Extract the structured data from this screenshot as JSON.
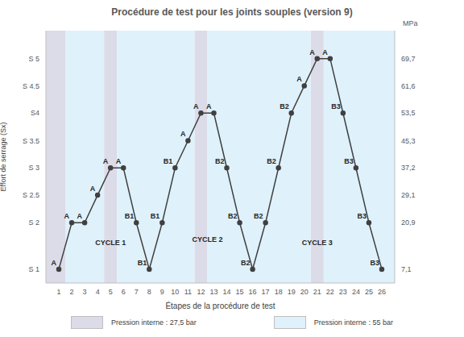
{
  "chart_data": {
    "type": "line",
    "title": "Procédure de test pour les joints souples (version 9)",
    "x_label": "Étapes de la procédure de test",
    "y_label": "Effort de serrage (Sx)",
    "y2_label": "MPa",
    "x": [
      1,
      2,
      3,
      4,
      5,
      6,
      7,
      8,
      9,
      10,
      11,
      12,
      13,
      14,
      15,
      16,
      17,
      18,
      19,
      20,
      21,
      22,
      23,
      24,
      25,
      26
    ],
    "values": [
      7.1,
      20.9,
      20.9,
      29.1,
      37.2,
      37.2,
      20.9,
      7.1,
      20.9,
      37.2,
      45.3,
      53.5,
      53.5,
      37.2,
      20.9,
      7.1,
      20.9,
      37.2,
      53.5,
      61.6,
      69.7,
      69.7,
      53.5,
      37.2,
      20.9,
      7.1
    ],
    "point_labels": [
      "A",
      "A",
      "A",
      "A",
      "A",
      "A",
      "B1",
      "B1",
      "B1",
      "B1",
      "A",
      "A",
      "A",
      "B2",
      "B2",
      "B2",
      "B2",
      "B2",
      "B2",
      "A",
      "A",
      "A",
      "B3",
      "B3",
      "B3",
      "B3"
    ],
    "color": "#404040",
    "marker": "circle",
    "xlim": [
      0,
      27
    ],
    "xticks": [
      1,
      2,
      3,
      4,
      5,
      6,
      7,
      8,
      9,
      10,
      11,
      12,
      13,
      14,
      15,
      16,
      17,
      18,
      19,
      20,
      21,
      22,
      23,
      24,
      25,
      26
    ],
    "ylim": [
      3,
      78
    ],
    "yticks": [
      {
        "value": 7.1,
        "label": "S 1"
      },
      {
        "value": 20.9,
        "label": "S 2"
      },
      {
        "value": 29.1,
        "label": "S 2.5"
      },
      {
        "value": 37.2,
        "label": "S 3"
      },
      {
        "value": 45.3,
        "label": "S 3.5"
      },
      {
        "value": 53.5,
        "label": "S4"
      },
      {
        "value": 61.6,
        "label": "S 4.5"
      },
      {
        "value": 69.7,
        "label": "S 5"
      }
    ],
    "y2lim": [
      3,
      78
    ],
    "y2ticks": [
      {
        "value": 7.1,
        "label": "7,1"
      },
      {
        "value": 20.9,
        "label": "20,9"
      },
      {
        "value": 29.1,
        "label": "29,1"
      },
      {
        "value": 37.2,
        "label": "37,2"
      },
      {
        "value": 45.3,
        "label": "45,3"
      },
      {
        "value": 53.5,
        "label": "53,5"
      },
      {
        "value": 61.6,
        "label": "61,6"
      },
      {
        "value": 69.7,
        "label": "69,7"
      }
    ],
    "grid": false,
    "legend": "bottom",
    "annotations": [
      {
        "text": "CYCLE 1",
        "x": 5,
        "y": 15
      },
      {
        "text": "CYCLE 2",
        "x": 12.5,
        "y": 16
      },
      {
        "text": "CYCLE 3",
        "x": 21,
        "y": 15
      }
    ],
    "zones": [
      {
        "name": "Pression interne : 27,5 bar",
        "color": "#dcdbe8",
        "ranges": [
          [
            0,
            1.5
          ],
          [
            4.5,
            5.5
          ],
          [
            11.5,
            12.5
          ],
          [
            20.5,
            21.5
          ]
        ]
      },
      {
        "name": "Pression interne : 55 bar",
        "color": "#dff1fb",
        "ranges": [
          [
            1.5,
            4.5
          ],
          [
            5.5,
            11.5
          ],
          [
            12.5,
            20.5
          ],
          [
            21.5,
            27
          ]
        ]
      }
    ]
  }
}
